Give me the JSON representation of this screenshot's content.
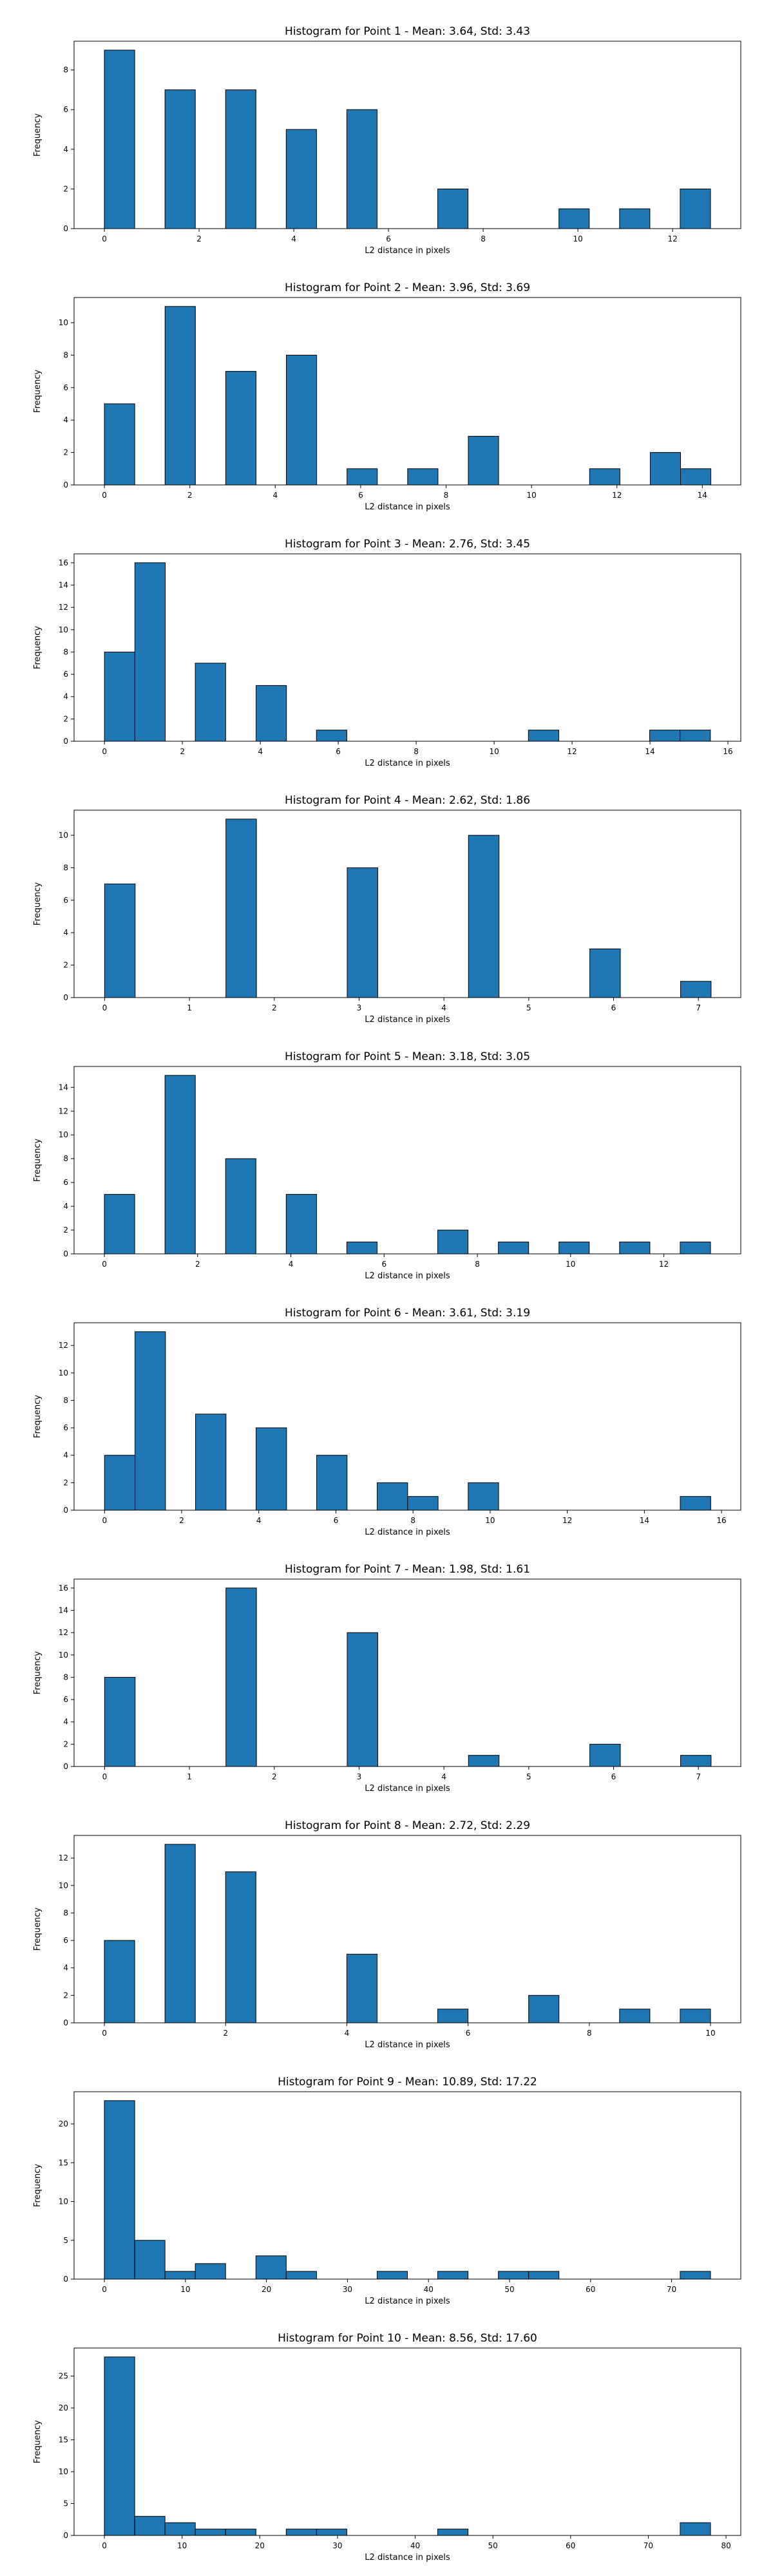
{
  "figure": {
    "background": "#ffffff",
    "bar_color": "#1f77b4",
    "edge_color": "#000000"
  },
  "chart_data": [
    {
      "type": "bar",
      "grid": false,
      "title": "Histogram for Point 1 - Mean: 3.64, Std: 3.43",
      "xlabel": "L2 distance in pixels",
      "ylabel": "Frequency",
      "xlim": [
        -0.64,
        13.44
      ],
      "ylim": [
        0,
        9.45
      ],
      "xticks": [
        0,
        2,
        4,
        6,
        8,
        10,
        12
      ],
      "yticks": [
        0,
        2,
        4,
        6,
        8
      ],
      "bin_width": 0.64,
      "bins": [
        [
          0,
          9
        ],
        [
          1.28,
          7
        ],
        [
          2.56,
          7
        ],
        [
          3.84,
          5
        ],
        [
          5.12,
          6
        ],
        [
          7.04,
          2
        ],
        [
          9.6,
          1
        ],
        [
          10.88,
          1
        ],
        [
          12.16,
          2
        ]
      ]
    },
    {
      "type": "bar",
      "grid": false,
      "title": "Histogram for Point 2 - Mean: 3.96, Std: 3.69",
      "xlabel": "L2 distance in pixels",
      "ylabel": "Frequency",
      "xlim": [
        -0.71,
        14.9
      ],
      "ylim": [
        0,
        11.55
      ],
      "xticks": [
        0,
        2,
        4,
        6,
        8,
        10,
        12,
        14
      ],
      "yticks": [
        0,
        2,
        4,
        6,
        8,
        10
      ],
      "bin_width": 0.71,
      "bins": [
        [
          0,
          5
        ],
        [
          1.42,
          11
        ],
        [
          2.84,
          7
        ],
        [
          4.26,
          8
        ],
        [
          5.68,
          1
        ],
        [
          7.1,
          1
        ],
        [
          8.52,
          3
        ],
        [
          11.36,
          1
        ],
        [
          12.78,
          2
        ],
        [
          13.49,
          1
        ]
      ]
    },
    {
      "type": "bar",
      "grid": false,
      "title": "Histogram for Point 3 - Mean: 2.76, Std: 3.45",
      "xlabel": "L2 distance in pixels",
      "ylabel": "Frequency",
      "xlim": [
        -0.78,
        16.33
      ],
      "ylim": [
        0,
        16.8
      ],
      "xticks": [
        0,
        2,
        4,
        6,
        8,
        10,
        12,
        14,
        16
      ],
      "yticks": [
        0,
        2,
        4,
        6,
        8,
        10,
        12,
        14,
        16
      ],
      "bin_width": 0.78,
      "bins": [
        [
          0,
          8
        ],
        [
          0.78,
          16
        ],
        [
          2.33,
          7
        ],
        [
          3.89,
          5
        ],
        [
          5.44,
          1
        ],
        [
          10.88,
          1
        ],
        [
          13.99,
          1
        ],
        [
          14.77,
          1
        ]
      ]
    },
    {
      "type": "bar",
      "grid": false,
      "title": "Histogram for Point 4 - Mean: 2.62, Std: 1.86",
      "xlabel": "L2 distance in pixels",
      "ylabel": "Frequency",
      "xlim": [
        -0.36,
        7.5
      ],
      "ylim": [
        0,
        11.55
      ],
      "xticks": [
        0,
        1,
        2,
        3,
        4,
        5,
        6,
        7
      ],
      "yticks": [
        0,
        2,
        4,
        6,
        8,
        10
      ],
      "bin_width": 0.36,
      "bins": [
        [
          0,
          7
        ],
        [
          1.43,
          11
        ],
        [
          2.86,
          8
        ],
        [
          4.29,
          10
        ],
        [
          5.72,
          3
        ],
        [
          6.79,
          1
        ]
      ]
    },
    {
      "type": "bar",
      "grid": false,
      "title": "Histogram for Point 5 - Mean: 3.18, Std: 3.05",
      "xlabel": "L2 distance in pixels",
      "ylabel": "Frequency",
      "xlim": [
        -0.65,
        13.65
      ],
      "ylim": [
        0,
        15.75
      ],
      "xticks": [
        0,
        2,
        4,
        6,
        8,
        10,
        12
      ],
      "yticks": [
        0,
        2,
        4,
        6,
        8,
        10,
        12,
        14
      ],
      "bin_width": 0.65,
      "bins": [
        [
          0,
          5
        ],
        [
          1.3,
          15
        ],
        [
          2.6,
          8
        ],
        [
          3.9,
          5
        ],
        [
          5.2,
          1
        ],
        [
          7.15,
          2
        ],
        [
          8.45,
          1
        ],
        [
          9.75,
          1
        ],
        [
          11.05,
          1
        ],
        [
          12.35,
          1
        ]
      ]
    },
    {
      "type": "bar",
      "grid": false,
      "title": "Histogram for Point 6 - Mean: 3.61, Std: 3.19",
      "xlabel": "L2 distance in pixels",
      "ylabel": "Frequency",
      "xlim": [
        -0.79,
        16.5
      ],
      "ylim": [
        0,
        13.65
      ],
      "xticks": [
        0,
        2,
        4,
        6,
        8,
        10,
        12,
        14,
        16
      ],
      "yticks": [
        0,
        2,
        4,
        6,
        8,
        10,
        12
      ],
      "bin_width": 0.79,
      "bins": [
        [
          0,
          4
        ],
        [
          0.79,
          13
        ],
        [
          2.36,
          7
        ],
        [
          3.93,
          6
        ],
        [
          5.5,
          4
        ],
        [
          7.07,
          2
        ],
        [
          7.86,
          1
        ],
        [
          9.43,
          2
        ],
        [
          14.93,
          1
        ]
      ]
    },
    {
      "type": "bar",
      "grid": false,
      "title": "Histogram for Point 7 - Mean: 1.98, Std: 1.61",
      "xlabel": "L2 distance in pixels",
      "ylabel": "Frequency",
      "xlim": [
        -0.36,
        7.5
      ],
      "ylim": [
        0,
        16.8
      ],
      "xticks": [
        0,
        1,
        2,
        3,
        4,
        5,
        6,
        7
      ],
      "yticks": [
        0,
        2,
        4,
        6,
        8,
        10,
        12,
        14,
        16
      ],
      "bin_width": 0.36,
      "bins": [
        [
          0,
          8
        ],
        [
          1.43,
          16
        ],
        [
          2.86,
          12
        ],
        [
          4.29,
          1
        ],
        [
          5.72,
          2
        ],
        [
          6.79,
          1
        ]
      ]
    },
    {
      "type": "bar",
      "grid": false,
      "title": "Histogram for Point 8 - Mean: 2.72, Std: 2.29",
      "xlabel": "L2 distance in pixels",
      "ylabel": "Frequency",
      "xlim": [
        -0.5,
        10.5
      ],
      "ylim": [
        0,
        13.65
      ],
      "xticks": [
        0,
        2,
        4,
        6,
        8,
        10
      ],
      "yticks": [
        0,
        2,
        4,
        6,
        8,
        10,
        12
      ],
      "bin_width": 0.5,
      "bins": [
        [
          0,
          6
        ],
        [
          1,
          13
        ],
        [
          2,
          11
        ],
        [
          4,
          5
        ],
        [
          5.5,
          1
        ],
        [
          7,
          2
        ],
        [
          8.5,
          1
        ],
        [
          9.5,
          1
        ]
      ]
    },
    {
      "type": "bar",
      "grid": false,
      "title": "Histogram for Point 9 - Mean: 10.89, Std: 17.22",
      "xlabel": "L2 distance in pixels",
      "ylabel": "Frequency",
      "xlim": [
        -3.74,
        78.54
      ],
      "ylim": [
        0,
        24.15
      ],
      "xticks": [
        0,
        10,
        20,
        30,
        40,
        50,
        60,
        70
      ],
      "yticks": [
        0,
        5,
        10,
        15,
        20
      ],
      "bin_width": 3.74,
      "bins": [
        [
          0,
          23
        ],
        [
          3.74,
          5
        ],
        [
          7.48,
          1
        ],
        [
          11.22,
          2
        ],
        [
          18.7,
          3
        ],
        [
          22.44,
          1
        ],
        [
          33.66,
          1
        ],
        [
          41.14,
          1
        ],
        [
          48.62,
          1
        ],
        [
          52.36,
          1
        ],
        [
          71.06,
          1
        ]
      ]
    },
    {
      "type": "bar",
      "grid": false,
      "title": "Histogram for Point 10 - Mean: 8.56, Std: 17.60",
      "xlabel": "L2 distance in pixels",
      "ylabel": "Frequency",
      "xlim": [
        -3.9,
        81.9
      ],
      "ylim": [
        0,
        29.4
      ],
      "xticks": [
        0,
        10,
        20,
        30,
        40,
        50,
        60,
        70,
        80
      ],
      "yticks": [
        0,
        5,
        10,
        15,
        20,
        25
      ],
      "bin_width": 3.9,
      "bins": [
        [
          0,
          28
        ],
        [
          3.9,
          3
        ],
        [
          7.8,
          2
        ],
        [
          11.7,
          1
        ],
        [
          15.6,
          1
        ],
        [
          23.4,
          1
        ],
        [
          27.3,
          1
        ],
        [
          42.9,
          1
        ],
        [
          74.1,
          2
        ]
      ]
    }
  ]
}
